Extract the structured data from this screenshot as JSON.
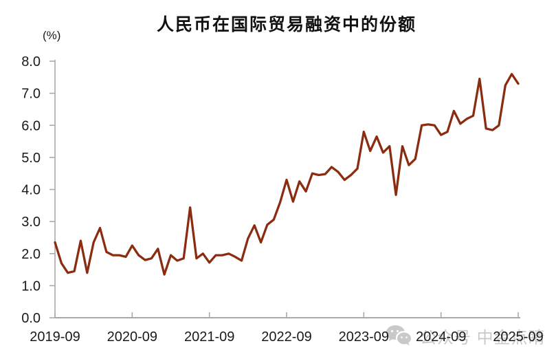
{
  "chart": {
    "title": "人民币在国际贸易融资中的份额",
    "unit_label": "(%)"
  },
  "watermark": {
    "text": "公众号 中金点睛",
    "icon": "wechat-icon"
  },
  "chart_data": {
    "type": "line",
    "title": "人民币在国际贸易融资中的份额",
    "ylabel": "(%)",
    "xlabel": "",
    "x_start": "2019-09",
    "x_freq": "monthly",
    "x_tick_labels": [
      "2019-09",
      "2020-09",
      "2021-09",
      "2022-09",
      "2023-09",
      "2024-09",
      "2025-09"
    ],
    "y_tick_labels": [
      "0.0",
      "1.0",
      "2.0",
      "3.0",
      "4.0",
      "5.0",
      "6.0",
      "7.0",
      "8.0"
    ],
    "ylim": [
      0,
      8
    ],
    "grid": false,
    "legend": "none",
    "series": [
      {
        "name": "人民币在国际贸易融资中的份额(%)",
        "values": [
          2.35,
          1.7,
          1.4,
          1.45,
          2.4,
          1.4,
          2.35,
          2.8,
          2.05,
          1.95,
          1.95,
          1.9,
          2.25,
          1.95,
          1.8,
          1.85,
          2.15,
          1.35,
          1.95,
          1.78,
          1.85,
          3.44,
          1.85,
          2.0,
          1.72,
          1.95,
          1.95,
          2.0,
          1.9,
          1.78,
          2.47,
          2.88,
          2.35,
          2.9,
          3.06,
          3.6,
          4.3,
          3.62,
          4.25,
          3.94,
          4.5,
          4.45,
          4.48,
          4.7,
          4.55,
          4.3,
          4.45,
          4.65,
          5.8,
          5.2,
          5.65,
          5.15,
          5.35,
          3.83,
          5.35,
          4.76,
          4.95,
          6.0,
          6.03,
          6.0,
          5.7,
          5.8,
          6.45,
          6.05,
          6.2,
          6.3,
          7.45,
          5.9,
          5.85,
          6.0,
          7.25,
          7.6,
          7.3
        ]
      }
    ],
    "colors": {
      "line": "#8B2C10",
      "axis": "#A9A9A9",
      "tick_label": "#1A1A1A",
      "watermark": "#C9C9C9"
    }
  }
}
